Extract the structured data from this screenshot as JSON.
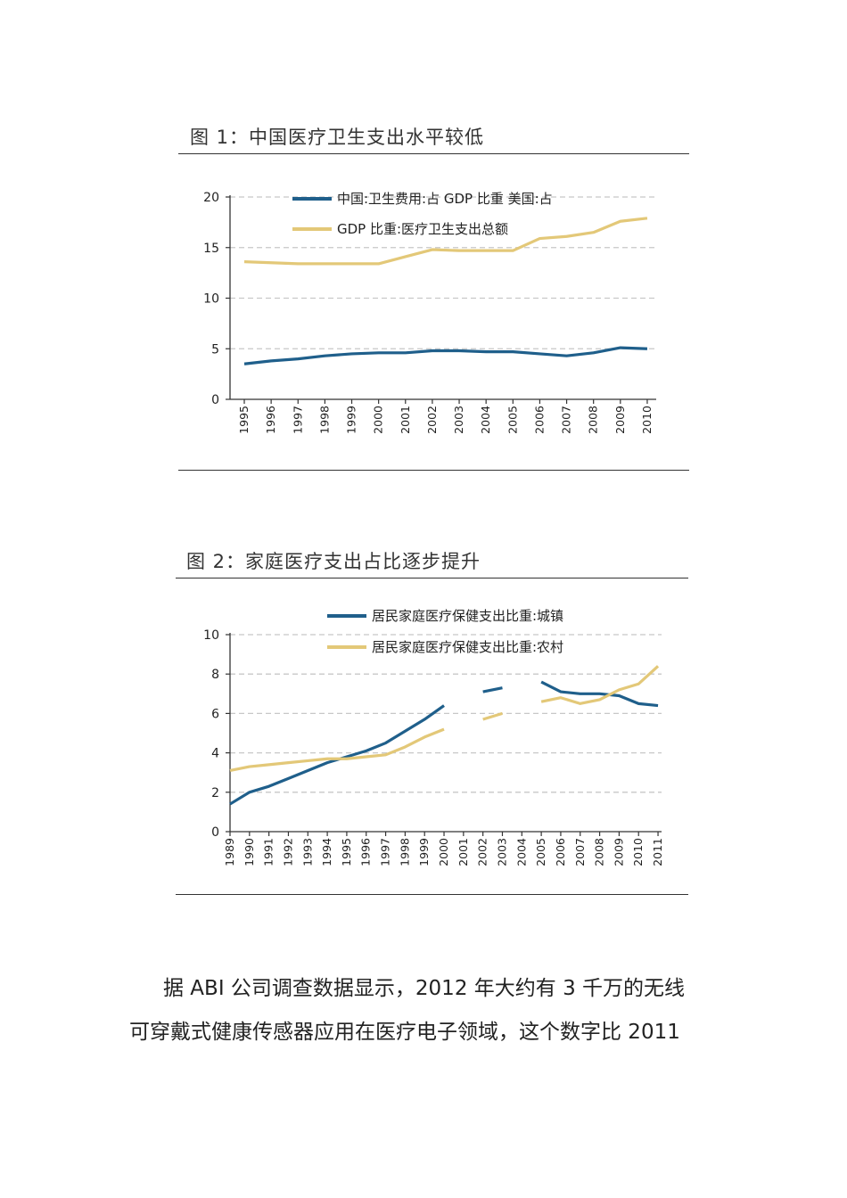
{
  "figure1": {
    "title": "图 1：中国医疗卫生支出水平较低",
    "chart_data": {
      "type": "line",
      "title": "",
      "xlabel": "",
      "ylabel": "",
      "x": [
        "1995",
        "1996",
        "1997",
        "1998",
        "1999",
        "2000",
        "2001",
        "2002",
        "2003",
        "2004",
        "2005",
        "2006",
        "2007",
        "2008",
        "2009",
        "2010"
      ],
      "ylim": [
        0,
        20
      ],
      "yticks": [
        0,
        5,
        10,
        15,
        20
      ],
      "grid": "horizontal dashed",
      "legend_position": "top-left",
      "series": [
        {
          "name": "中国:卫生费用:占 GDP 比重 美国:占",
          "color": "#1f5f8b",
          "values": [
            3.5,
            3.8,
            4.0,
            4.3,
            4.5,
            4.6,
            4.6,
            4.8,
            4.8,
            4.7,
            4.7,
            4.5,
            4.3,
            4.6,
            5.1,
            5.0
          ]
        },
        {
          "name": "GDP 比重:医疗卫生支出总额",
          "color": "#e3c878",
          "values": [
            13.6,
            13.5,
            13.4,
            13.4,
            13.4,
            13.4,
            14.1,
            14.8,
            14.7,
            14.7,
            14.7,
            15.9,
            16.1,
            16.5,
            17.6,
            17.9
          ]
        }
      ]
    }
  },
  "figure2": {
    "title": "图 2：家庭医疗支出占比逐步提升",
    "chart_data": {
      "type": "line",
      "title": "",
      "xlabel": "",
      "ylabel": "",
      "x": [
        "1989",
        "1990",
        "1991",
        "1992",
        "1993",
        "1994",
        "1995",
        "1996",
        "1997",
        "1998",
        "1999",
        "2000",
        "2001",
        "2002",
        "2003",
        "2004",
        "2005",
        "2006",
        "2007",
        "2008",
        "2009",
        "2010",
        "2011"
      ],
      "ylim": [
        0,
        10
      ],
      "yticks": [
        0,
        2,
        4,
        6,
        8,
        10
      ],
      "grid": "horizontal dashed",
      "legend_position": "top-right",
      "series": [
        {
          "name": "居民家庭医疗保健支出比重:城镇",
          "color": "#1f5f8b",
          "values": [
            1.4,
            2.0,
            2.3,
            2.7,
            3.1,
            3.5,
            3.8,
            4.1,
            4.5,
            5.1,
            5.7,
            6.4,
            null,
            7.1,
            7.3,
            null,
            7.6,
            7.1,
            7.0,
            7.0,
            6.9,
            6.5,
            6.4
          ]
        },
        {
          "name": "居民家庭医疗保健支出比重:农村",
          "color": "#e3c878",
          "values": [
            3.1,
            3.3,
            3.4,
            3.5,
            3.6,
            3.7,
            3.7,
            3.8,
            3.9,
            4.3,
            4.8,
            5.2,
            null,
            5.7,
            6.0,
            null,
            6.6,
            6.8,
            6.5,
            6.7,
            7.2,
            7.5,
            8.4
          ]
        }
      ]
    }
  },
  "paragraph": {
    "line1": "据 ABI 公司调查数据显示，2012 年大约有 3 千万的无线",
    "line2": "可穿戴式健康传感器应用在医疗电子领域，这个数字比 2011"
  }
}
